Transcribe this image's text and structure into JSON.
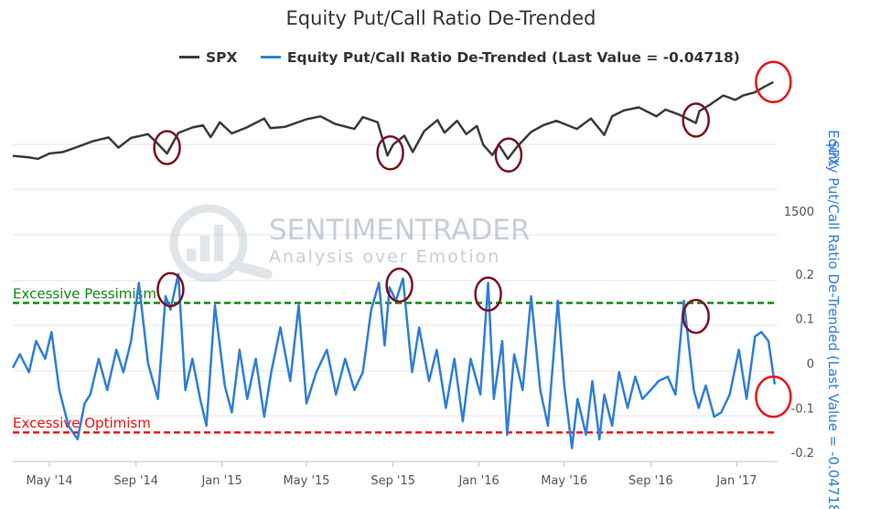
{
  "colors": {
    "spx": "#3a3a3a",
    "ratio": "#2f7ed8",
    "pessimism": "#118811",
    "optimism": "#ee1111",
    "circle_dark": "#7a1020",
    "circle_red": "#e8141a",
    "grid": "#e6e6e6",
    "axis_label": "#2f7ed8"
  },
  "watermark": {
    "brand": "SENTIMENTRADER",
    "tagline": "Analysis over Emotion"
  },
  "chart_data": {
    "type": "line",
    "title": "Equity Put/Call Ratio De-Trended",
    "legend_position": "top",
    "grid": true,
    "x_tick_labels": [
      "May '14",
      "Sep '14",
      "Jan '15",
      "May '15",
      "Sep '15",
      "Jan '16",
      "May '16",
      "Sep '16",
      "Jan '17"
    ],
    "x_tick_dates": [
      "2014-05-01",
      "2014-09-01",
      "2015-01-01",
      "2015-05-01",
      "2015-09-01",
      "2016-01-01",
      "2016-05-01",
      "2016-09-01",
      "2017-01-01"
    ],
    "x_range": [
      "2014-03-10",
      "2017-02-28"
    ],
    "axes": {
      "spx": {
        "label": "SPX",
        "ticks": [
          1500
        ]
      },
      "ratio": {
        "label": "Equity Put/Call Ratio De-Trended (Last Value = -0.04718)",
        "ticks": [
          -0.2,
          -0.1,
          0,
          0.1,
          0.2
        ],
        "ylim": [
          -0.22,
          0.22
        ]
      }
    },
    "series": [
      {
        "name": "SPX",
        "x": [
          "2014-03-10",
          "2014-04-01",
          "2014-04-15",
          "2014-05-01",
          "2014-05-20",
          "2014-06-10",
          "2014-07-01",
          "2014-07-24",
          "2014-08-07",
          "2014-08-25",
          "2014-09-18",
          "2014-10-01",
          "2014-10-15",
          "2014-10-31",
          "2014-11-20",
          "2014-12-05",
          "2014-12-16",
          "2014-12-29",
          "2015-01-15",
          "2015-02-05",
          "2015-03-02",
          "2015-03-11",
          "2015-04-01",
          "2015-05-01",
          "2015-05-21",
          "2015-06-10",
          "2015-07-08",
          "2015-07-20",
          "2015-08-10",
          "2015-08-24",
          "2015-09-01",
          "2015-09-17",
          "2015-09-29",
          "2015-10-15",
          "2015-11-03",
          "2015-11-13",
          "2015-12-01",
          "2015-12-14",
          "2015-12-29",
          "2016-01-07",
          "2016-01-20",
          "2016-01-29",
          "2016-02-11",
          "2016-02-25",
          "2016-03-15",
          "2016-04-01",
          "2016-04-20",
          "2016-05-19",
          "2016-06-08",
          "2016-06-27",
          "2016-07-08",
          "2016-07-25",
          "2016-08-15",
          "2016-09-09",
          "2016-09-22",
          "2016-10-12",
          "2016-11-04",
          "2016-11-09",
          "2016-11-23",
          "2016-12-13",
          "2016-12-30",
          "2017-01-10",
          "2017-01-26",
          "2017-02-10",
          "2017-02-22"
        ],
        "values": [
          1865,
          1855,
          1845,
          1880,
          1890,
          1925,
          1962,
          1988,
          1920,
          1985,
          2010,
          1950,
          1880,
          2018,
          2055,
          2070,
          1990,
          2090,
          2015,
          2055,
          2115,
          2050,
          2060,
          2110,
          2130,
          2080,
          2045,
          2125,
          2090,
          1867,
          1940,
          2000,
          1890,
          2030,
          2105,
          2020,
          2100,
          2010,
          2065,
          1940,
          1870,
          1940,
          1845,
          1930,
          2025,
          2070,
          2100,
          2045,
          2115,
          2005,
          2130,
          2170,
          2190,
          2130,
          2175,
          2140,
          2085,
          2165,
          2205,
          2270,
          2240,
          2270,
          2290,
          2330,
          2360
        ]
      },
      {
        "name": "Equity Put/Call Ratio De-Trended (Last Value = -0.04718)",
        "last_value": -0.04718,
        "x": [
          "2014-03-10",
          "2014-03-20",
          "2014-04-02",
          "2014-04-12",
          "2014-04-25",
          "2014-05-04",
          "2014-05-15",
          "2014-05-28",
          "2014-06-10",
          "2014-06-20",
          "2014-06-28",
          "2014-07-10",
          "2014-07-22",
          "2014-08-04",
          "2014-08-14",
          "2014-08-25",
          "2014-09-05",
          "2014-09-18",
          "2014-10-02",
          "2014-10-13",
          "2014-10-20",
          "2014-10-31",
          "2014-11-10",
          "2014-11-20",
          "2014-12-01",
          "2014-12-10",
          "2014-12-22",
          "2015-01-05",
          "2015-01-15",
          "2015-01-26",
          "2015-02-06",
          "2015-02-18",
          "2015-03-02",
          "2015-03-12",
          "2015-03-25",
          "2015-04-08",
          "2015-04-20",
          "2015-05-01",
          "2015-05-15",
          "2015-05-30",
          "2015-06-12",
          "2015-06-25",
          "2015-07-08",
          "2015-07-20",
          "2015-08-01",
          "2015-08-12",
          "2015-08-20",
          "2015-08-27",
          "2015-09-05",
          "2015-09-15",
          "2015-09-28",
          "2015-10-08",
          "2015-10-22",
          "2015-11-02",
          "2015-11-15",
          "2015-11-27",
          "2015-12-09",
          "2015-12-20",
          "2016-01-03",
          "2016-01-14",
          "2016-01-22",
          "2016-02-03",
          "2016-02-10",
          "2016-02-20",
          "2016-03-03",
          "2016-03-15",
          "2016-03-28",
          "2016-04-08",
          "2016-04-22",
          "2016-05-01",
          "2016-05-12",
          "2016-05-20",
          "2016-06-01",
          "2016-06-10",
          "2016-06-20",
          "2016-06-27",
          "2016-07-08",
          "2016-07-18",
          "2016-07-30",
          "2016-08-10",
          "2016-08-20",
          "2016-09-01",
          "2016-09-12",
          "2016-09-25",
          "2016-10-06",
          "2016-10-18",
          "2016-11-01",
          "2016-11-08",
          "2016-11-18",
          "2016-11-30",
          "2016-12-10",
          "2016-12-22",
          "2017-01-04",
          "2017-01-15",
          "2017-01-27",
          "2017-02-05",
          "2017-02-15",
          "2017-02-24"
        ],
        "values": [
          -0.01,
          0.02,
          -0.02,
          0.05,
          0.01,
          0.07,
          -0.06,
          -0.14,
          -0.17,
          -0.09,
          -0.07,
          0.01,
          -0.06,
          0.03,
          -0.02,
          0.05,
          0.18,
          0.0,
          -0.08,
          0.15,
          0.12,
          0.2,
          -0.06,
          0.01,
          -0.08,
          -0.14,
          0.13,
          -0.05,
          -0.11,
          0.03,
          -0.08,
          0.01,
          -0.12,
          -0.02,
          0.08,
          -0.04,
          0.13,
          -0.09,
          -0.02,
          0.03,
          -0.07,
          0.01,
          -0.06,
          -0.02,
          0.12,
          0.18,
          0.04,
          0.17,
          0.14,
          0.19,
          -0.02,
          0.08,
          -0.04,
          0.03,
          -0.1,
          0.01,
          -0.13,
          0.01,
          -0.07,
          0.18,
          -0.08,
          0.05,
          -0.16,
          0.02,
          -0.06,
          0.15,
          -0.06,
          -0.14,
          0.14,
          -0.05,
          -0.19,
          -0.08,
          -0.16,
          -0.04,
          -0.17,
          -0.07,
          -0.14,
          -0.02,
          -0.1,
          -0.03,
          -0.08,
          -0.06,
          -0.04,
          -0.03,
          -0.07,
          0.14,
          -0.06,
          -0.1,
          -0.05,
          -0.12,
          -0.11,
          -0.07,
          0.03,
          -0.08,
          0.06,
          0.07,
          0.05,
          -0.047
        ]
      }
    ],
    "reference_lines": [
      {
        "label": "Excessive Pessimism",
        "value": 0.135
      },
      {
        "label": "Excessive Optimism",
        "value": -0.155
      }
    ],
    "highlight_circles": [
      {
        "axis": "spx",
        "x": "2014-10-15",
        "y": 1920
      },
      {
        "axis": "spx",
        "x": "2015-08-28",
        "y": 1885
      },
      {
        "axis": "spx",
        "x": "2016-02-12",
        "y": 1870
      },
      {
        "axis": "spx",
        "x": "2016-11-04",
        "y": 2105
      },
      {
        "axis": "spx",
        "x": "2017-02-22",
        "y": 2360
      },
      {
        "axis": "ratio",
        "x": "2014-10-20",
        "y": 0.165
      },
      {
        "axis": "ratio",
        "x": "2015-09-10",
        "y": 0.175
      },
      {
        "axis": "ratio",
        "x": "2016-01-14",
        "y": 0.155
      },
      {
        "axis": "ratio",
        "x": "2016-11-04",
        "y": 0.105
      },
      {
        "axis": "ratio",
        "x": "2017-02-22",
        "y": -0.075
      }
    ]
  }
}
